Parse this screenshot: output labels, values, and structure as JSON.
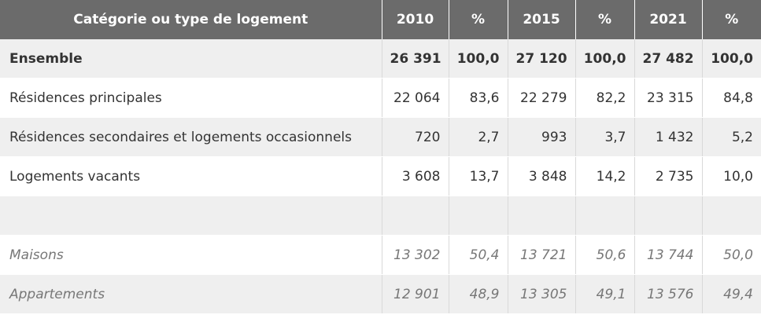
{
  "headers": [
    "Catégorie ou type de logement",
    "2010",
    "%",
    "2015",
    "%",
    "2021",
    "%"
  ],
  "rows": [
    [
      "Ensemble",
      "26 391",
      "100,0",
      "27 120",
      "100,0",
      "27 482",
      "100,0"
    ],
    [
      "Résidences principales",
      "22 064",
      "83,6",
      "22 279",
      "82,2",
      "23 315",
      "84,8"
    ],
    [
      "Résidences secondaires et logements occasionnels",
      "720",
      "2,7",
      "993",
      "3,7",
      "1 432",
      "5,2"
    ],
    [
      "Logements vacants",
      "3 608",
      "13,7",
      "3 848",
      "14,2",
      "2 735",
      "10,0"
    ],
    [
      "",
      "",
      "",
      "",
      "",
      "",
      ""
    ],
    [
      "Maisons",
      "13 302",
      "50,4",
      "13 721",
      "50,6",
      "13 744",
      "50,0"
    ],
    [
      "Appartements",
      "12 901",
      "48,9",
      "13 305",
      "49,1",
      "13 576",
      "49,4"
    ]
  ]
}
